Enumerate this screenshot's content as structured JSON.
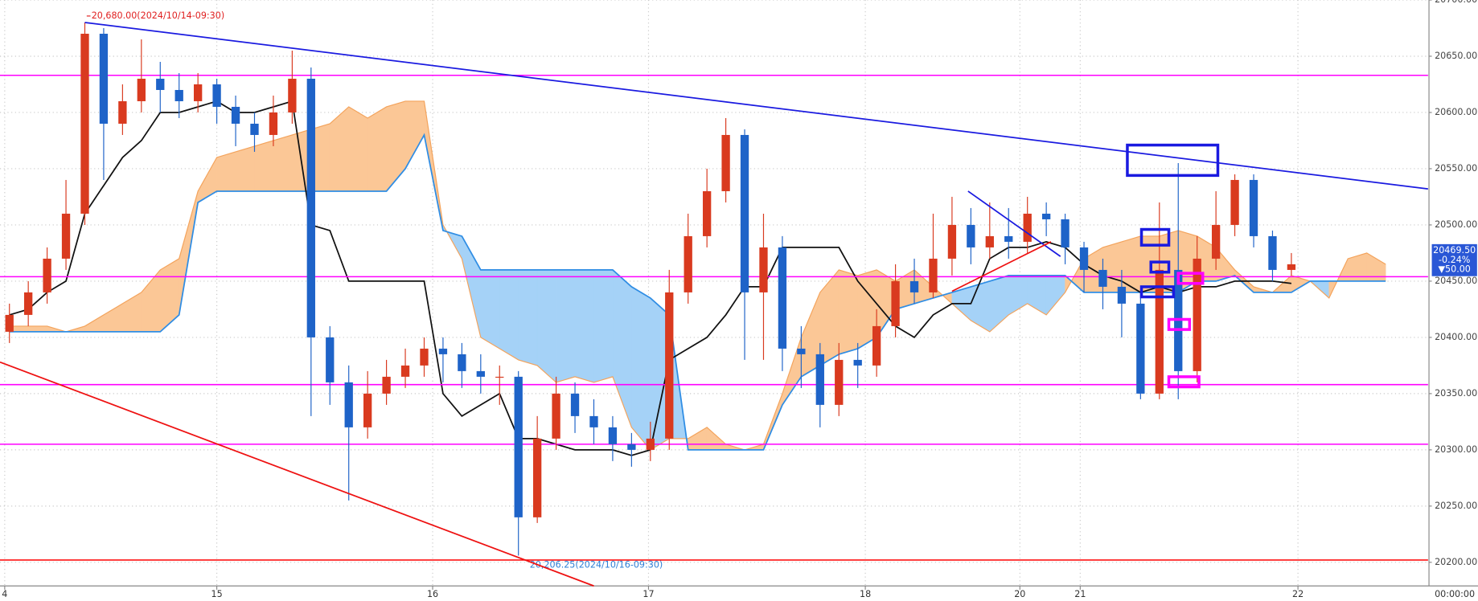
{
  "chart_data": {
    "type": "candlestick",
    "xlim": [
      -0.5,
      75.25
    ],
    "ylim": [
      20179,
      20700
    ],
    "xticks": [
      {
        "value": -0.25,
        "label": "4"
      },
      {
        "value": 11,
        "label": "15"
      },
      {
        "value": 22.45,
        "label": "16"
      },
      {
        "value": 33.9,
        "label": "17"
      },
      {
        "value": 45.4,
        "label": "18"
      },
      {
        "value": 53.6,
        "label": "20"
      },
      {
        "value": 56.8,
        "label": "21"
      },
      {
        "value": 68.35,
        "label": "22"
      }
    ],
    "yticks": [
      {
        "value": 20200,
        "label": "20200.00"
      },
      {
        "value": 20250,
        "label": "20250.00"
      },
      {
        "value": 20300,
        "label": "20300.00"
      },
      {
        "value": 20350,
        "label": "20350.00"
      },
      {
        "value": 20400,
        "label": "20400.00"
      },
      {
        "value": 20450,
        "label": "20450.00"
      },
      {
        "value": 20500,
        "label": "20500.00"
      },
      {
        "value": 20550,
        "label": "20550.00"
      },
      {
        "value": 20600,
        "label": "20600.00"
      },
      {
        "value": 20650,
        "label": "20650.00"
      },
      {
        "value": 20700,
        "label": "20700.00"
      }
    ],
    "grid": true,
    "up_color": "#d93a1f",
    "down_color": "#1e63c8",
    "open": [
      20405,
      20420,
      20440,
      20470,
      20510,
      20670,
      20590,
      20610,
      20630,
      20620,
      20610,
      20625,
      20605,
      20590,
      20580,
      20600,
      20630,
      20400,
      20360,
      20320,
      20350,
      20365,
      20375,
      20390,
      20385,
      20370,
      20365,
      20365,
      20240,
      20310,
      20350,
      20330,
      20320,
      20305,
      20300,
      20310,
      20440,
      20490,
      20530,
      20580,
      20440,
      20480,
      20390,
      20385,
      20340,
      20380,
      20375,
      20410,
      20450,
      20440,
      20470,
      20500,
      20480,
      20490,
      20485,
      20510,
      20505,
      20480,
      20460,
      20445,
      20430,
      20350,
      20460,
      20370,
      20470,
      20500,
      20540,
      20490,
      20460
    ],
    "high": [
      20430,
      20450,
      20480,
      20540,
      20680,
      20675,
      20625,
      20665,
      20645,
      20635,
      20635,
      20630,
      20615,
      20600,
      20615,
      20655,
      20640,
      20410,
      20375,
      20370,
      20380,
      20390,
      20400,
      20400,
      20395,
      20385,
      20375,
      20370,
      20330,
      20365,
      20360,
      20345,
      20330,
      20315,
      20325,
      20460,
      20510,
      20550,
      20595,
      20585,
      20510,
      20490,
      20410,
      20395,
      20395,
      20395,
      20425,
      20465,
      20470,
      20510,
      20525,
      20515,
      20520,
      20515,
      20525,
      20520,
      20510,
      20485,
      20470,
      20460,
      20440,
      20520,
      20555,
      20490,
      20530,
      20545,
      20545,
      20495,
      20475
    ],
    "low": [
      20395,
      20410,
      20430,
      20460,
      20500,
      20540,
      20580,
      20600,
      20600,
      20595,
      20600,
      20590,
      20570,
      20565,
      20570,
      20590,
      20330,
      20340,
      20255,
      20310,
      20340,
      20355,
      20365,
      20360,
      20355,
      20350,
      20340,
      20206,
      20235,
      20300,
      20315,
      20305,
      20290,
      20285,
      20290,
      20300,
      20430,
      20480,
      20520,
      20380,
      20380,
      20370,
      20355,
      20320,
      20330,
      20355,
      20365,
      20400,
      20430,
      20435,
      20455,
      20465,
      20470,
      20470,
      20475,
      20490,
      20465,
      20440,
      20425,
      20400,
      20345,
      20345,
      20345,
      20360,
      20460,
      20490,
      20480,
      20450,
      20455
    ],
    "close": [
      20420,
      20440,
      20470,
      20510,
      20670,
      20590,
      20610,
      20630,
      20620,
      20610,
      20625,
      20605,
      20590,
      20580,
      20600,
      20630,
      20400,
      20360,
      20320,
      20350,
      20365,
      20375,
      20390,
      20385,
      20370,
      20365,
      20365,
      20240,
      20310,
      20350,
      20330,
      20320,
      20305,
      20300,
      20310,
      20440,
      20490,
      20530,
      20580,
      20440,
      20480,
      20390,
      20385,
      20340,
      20380,
      20375,
      20410,
      20450,
      20440,
      20470,
      20500,
      20480,
      20490,
      20485,
      20510,
      20505,
      20480,
      20460,
      20445,
      20430,
      20350,
      20460,
      20370,
      20470,
      20500,
      20540,
      20490,
      20460,
      20465
    ],
    "base_line": {
      "color": "#111111",
      "values": [
        20420,
        20425,
        20440,
        20450,
        20510,
        20535,
        20560,
        20575,
        20600,
        20600,
        20605,
        20610,
        20600,
        20600,
        20605,
        20610,
        20500,
        20495,
        20450,
        20450,
        20450,
        20450,
        20450,
        20350,
        20330,
        20340,
        20350,
        20310,
        20310,
        20305,
        20300,
        20300,
        20300,
        20295,
        20300,
        20380,
        20390,
        20400,
        20420,
        20445,
        20445,
        20480,
        20480,
        20480,
        20480,
        20450,
        20430,
        20410,
        20400,
        20420,
        20430,
        20430,
        20470,
        20480,
        20480,
        20485,
        20480,
        20465,
        20455,
        20450,
        20440,
        20445,
        20440,
        20445,
        20445,
        20450,
        20450,
        20450,
        20448
      ]
    },
    "cloud": {
      "up_color": "#fbc796",
      "down_color": "#a5d2f7",
      "line_color_a": "#f3a35c",
      "line_color_b": "#2f8de4",
      "span_a": [
        20410,
        20410,
        20410,
        20405,
        20410,
        20420,
        20430,
        20440,
        20460,
        20470,
        20530,
        20560,
        20565,
        20570,
        20575,
        20580,
        20585,
        20590,
        20605,
        20595,
        20605,
        20610,
        20610,
        20500,
        20470,
        20400,
        20390,
        20380,
        20375,
        20360,
        20365,
        20360,
        20365,
        20320,
        20300,
        20310,
        20310,
        20320,
        20305,
        20300,
        20305,
        20350,
        20400,
        20440,
        20460,
        20455,
        20460,
        20450,
        20460,
        20445,
        20430,
        20415,
        20405,
        20420,
        20430,
        20420,
        20440,
        20470,
        20480,
        20485,
        20490,
        20490,
        20495,
        20490,
        20480,
        20460,
        20445,
        20440,
        20455,
        20450,
        20435,
        20470,
        20475,
        20465
      ],
      "span_b": [
        20405,
        20405,
        20405,
        20405,
        20405,
        20405,
        20405,
        20405,
        20405,
        20420,
        20520,
        20530,
        20530,
        20530,
        20530,
        20530,
        20530,
        20530,
        20530,
        20530,
        20530,
        20550,
        20580,
        20495,
        20490,
        20460,
        20460,
        20460,
        20460,
        20460,
        20460,
        20460,
        20460,
        20445,
        20435,
        20420,
        20300,
        20300,
        20300,
        20300,
        20300,
        20340,
        20365,
        20375,
        20385,
        20390,
        20400,
        20425,
        20430,
        20435,
        20440,
        20445,
        20450,
        20455,
        20455,
        20455,
        20455,
        20440,
        20440,
        20440,
        20440,
        20440,
        20440,
        20450,
        20450,
        20455,
        20440,
        20440,
        20440,
        20450,
        20450,
        20450,
        20450,
        20450
      ]
    },
    "horizontal_lines": [
      {
        "value": 20633,
        "color": "#ff00ff"
      },
      {
        "value": 20454,
        "color": "#ff00ff"
      },
      {
        "value": 20358,
        "color": "#ff00ff"
      },
      {
        "value": 20305,
        "color": "#ff00ff"
      },
      {
        "value": 20202,
        "color": "#ff0000"
      }
    ],
    "trend_lines": [
      {
        "x": [
          4,
          75.25
        ],
        "y": [
          20680,
          20532
        ],
        "color": "#1a1ae0"
      },
      {
        "x": [
          -0.5,
          31
        ],
        "y": [
          20378,
          20179
        ],
        "color": "#ee1111"
      },
      {
        "x": [
          50.85,
          55.75
        ],
        "y": [
          20530,
          20472
        ],
        "color": "#1a1ae0"
      },
      {
        "x": [
          50,
          55.25
        ],
        "y": [
          20441,
          20485
        ],
        "color": "#ee1111"
      }
    ],
    "boxes": [
      {
        "x": [
          59.3,
          64.1
        ],
        "y": [
          20544,
          20571
        ],
        "color": "#1a1ae0"
      },
      {
        "x": [
          60.05,
          61.5
        ],
        "y": [
          20482,
          20496
        ],
        "color": "#1a1ae0"
      },
      {
        "x": [
          60.55,
          61.5
        ],
        "y": [
          20458,
          20467
        ],
        "color": "#1a1ae0"
      },
      {
        "x": [
          60.05,
          61.75
        ],
        "y": [
          20436,
          20445
        ],
        "color": "#1a1ae0"
      },
      {
        "x": [
          62,
          63.3
        ],
        "y": [
          20448,
          20457
        ],
        "color": "#ff00ff"
      },
      {
        "x": [
          61.5,
          62.6
        ],
        "y": [
          20407,
          20416
        ],
        "color": "#ff00ff"
      },
      {
        "x": [
          61.5,
          63.1
        ],
        "y": [
          20356,
          20365
        ],
        "color": "#ff00ff"
      }
    ],
    "annotations": [
      "20,680.00(2024/10/14-09:30)",
      "20,206.25(2024/10/16-09:30)"
    ],
    "current_price": {
      "value": 20469.5,
      "label": "20469.50",
      "change": "-0.24%",
      "change_points": "▼50.00"
    },
    "time_label": "00:00:00"
  }
}
